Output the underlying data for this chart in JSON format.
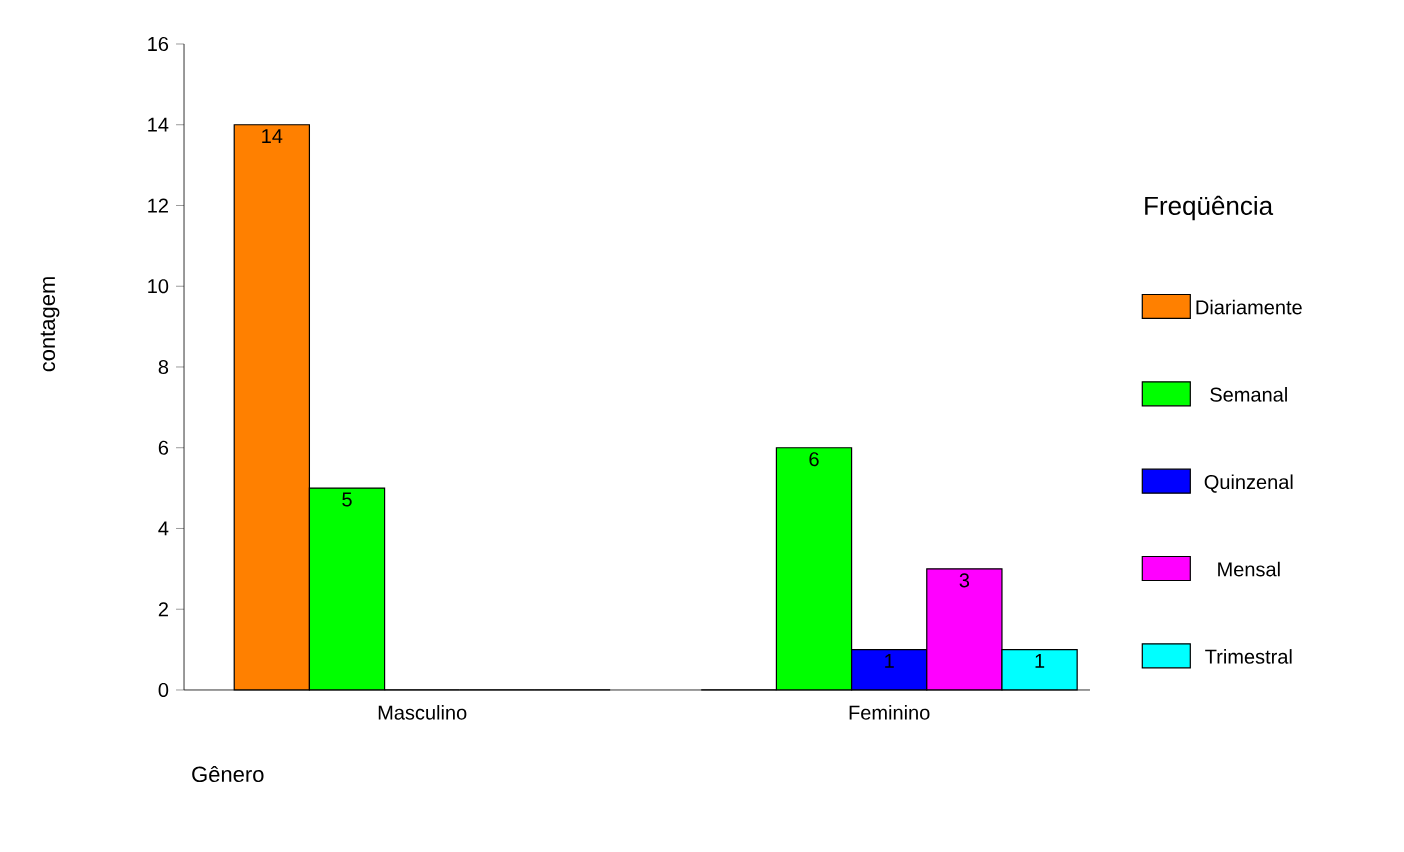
{
  "chart_data": {
    "type": "bar",
    "xlabel": "Gênero",
    "ylabel": "contagem",
    "legend_title": "Freqüência",
    "categories": [
      "Masculino",
      "Feminino"
    ],
    "series": [
      {
        "name": "Diariamente",
        "color": "#ff8000",
        "values": [
          14,
          0
        ],
        "value_labels": [
          "14",
          null
        ]
      },
      {
        "name": "Semanal",
        "color": "#00ff00",
        "values": [
          5,
          6
        ],
        "value_labels": [
          "5",
          "6"
        ]
      },
      {
        "name": "Quinzenal",
        "color": "#0000ff",
        "values": [
          0,
          1
        ],
        "value_labels": [
          null,
          "1"
        ]
      },
      {
        "name": "Mensal",
        "color": "#ff00ff",
        "values": [
          0,
          3
        ],
        "value_labels": [
          null,
          "3"
        ]
      },
      {
        "name": "Trimestral",
        "color": "#00ffff",
        "values": [
          0,
          1
        ],
        "value_labels": [
          null,
          "1"
        ]
      }
    ],
    "ylim": [
      0,
      16
    ],
    "yticks": [
      0,
      2,
      4,
      6,
      8,
      10,
      12,
      14,
      16
    ],
    "grid": false,
    "legend": "right"
  }
}
